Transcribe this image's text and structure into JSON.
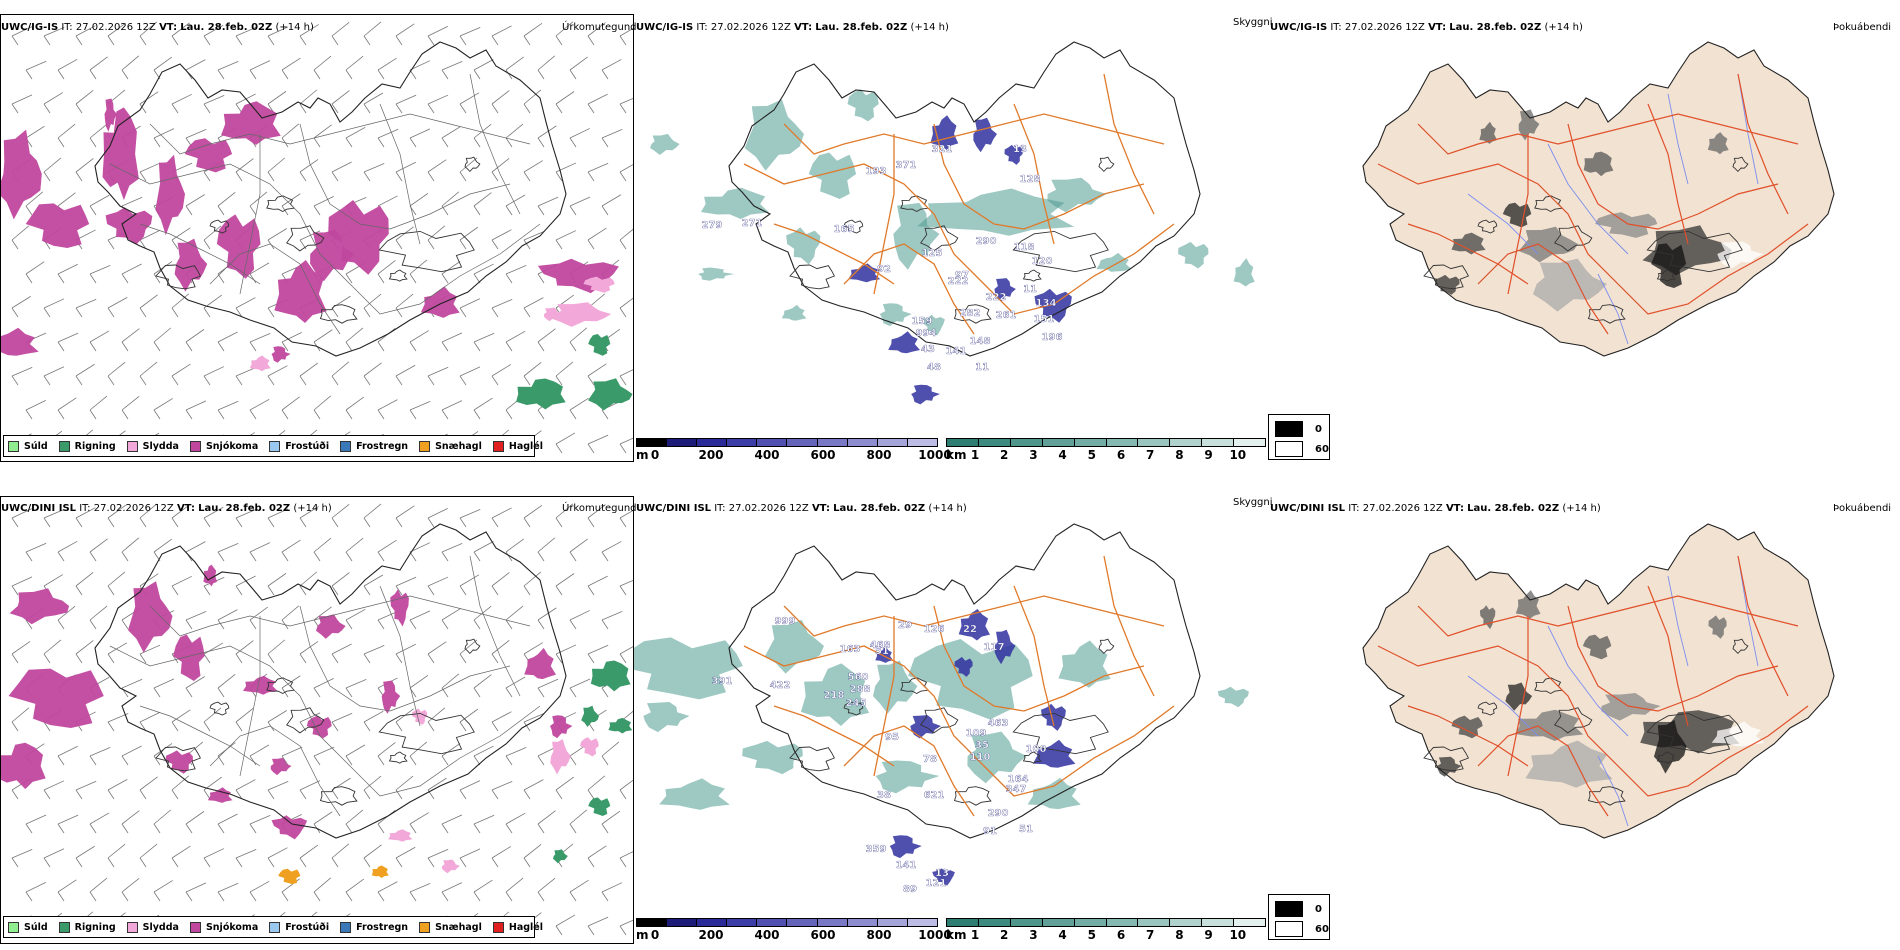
{
  "rows": [
    {
      "model": "UWC/IG-IS",
      "it_label": "IT:",
      "it_value": "27.02.2026 12Z",
      "vt_label": "VT:",
      "vt_value": "Lau. 28.feb. 02Z",
      "lead": "(+14 h)",
      "panel_titles": [
        "Úrkomutegund",
        "Skyggni",
        "Þokuábendi"
      ],
      "cloud_labels": [
        "321",
        "13",
        "279",
        "371",
        "193",
        "128",
        "271",
        "165",
        "290",
        "118",
        "125",
        "120",
        "92",
        "97",
        "222",
        "11",
        "222",
        "134",
        "282",
        "261",
        "159",
        "151",
        "994",
        "148",
        "196",
        "43",
        "141",
        "48",
        "11"
      ]
    },
    {
      "model": "UWC/DINI ISL",
      "it_label": "IT:",
      "it_value": "27.02.2026 12Z",
      "vt_label": "VT:",
      "vt_value": "Lau. 28.feb. 02Z",
      "lead": "(+14 h)",
      "panel_titles": [
        "Úrkomutegund",
        "Skyggni",
        "Þokuábendi"
      ],
      "cloud_labels": [
        "999",
        "29",
        "126",
        "22",
        "468",
        "163",
        "51",
        "117",
        "560",
        "391",
        "422",
        "288",
        "218",
        "245",
        "463",
        "109",
        "95",
        "35",
        "100",
        "110",
        "78",
        "164",
        "347",
        "38",
        "621",
        "290",
        "91",
        "51",
        "359",
        "141",
        "13",
        "89",
        "121"
      ]
    }
  ],
  "precip_legend": [
    {
      "label": "Súld",
      "color": "#90ee90"
    },
    {
      "label": "Rigning",
      "color": "#3a9a6a"
    },
    {
      "label": "Slydda",
      "color": "#f2a8d8"
    },
    {
      "label": "Snjókoma",
      "color": "#c0479e"
    },
    {
      "label": "Frostúði",
      "color": "#9ac8ee"
    },
    {
      "label": "Frostregn",
      "color": "#3a78b8"
    },
    {
      "label": "Snæhagl",
      "color": "#f0a020"
    },
    {
      "label": "Haglél",
      "color": "#e02020"
    }
  ],
  "cloudbase_bar": {
    "unit": "m",
    "ticks": [
      "0",
      "200",
      "400",
      "600",
      "800",
      "1000"
    ],
    "colors": [
      "#000000",
      "#1c1c78",
      "#2a2a98",
      "#3d3da8",
      "#5050b0",
      "#6464b8",
      "#7878c4",
      "#8c8cce",
      "#a4a4d8",
      "#bcbce4"
    ]
  },
  "visibility_bar": {
    "unit": "km",
    "ticks": [
      "1",
      "2",
      "3",
      "4",
      "5",
      "6",
      "7",
      "8",
      "9",
      "10"
    ],
    "colors": [
      "#2e7d72",
      "#3d8a80",
      "#4e958c",
      "#60a098",
      "#72aca4",
      "#86b8b2",
      "#9ac4be",
      "#b0d2cc",
      "#c8e0dc",
      "#e4f0ee"
    ]
  },
  "fog_legend": [
    {
      "label": "0",
      "color": "#000000"
    },
    {
      "label": "60",
      "color": "#ffffff"
    }
  ],
  "colors": {
    "snow": "#c0479e",
    "sleet": "#f2a8d8",
    "rain": "#3a9a6a",
    "vis": "#4e9a90",
    "cloudbase": "#3030a0",
    "roads": "#e07a2a",
    "land_fog": "#f2e2d2",
    "fog_roads": "#e0502a",
    "rivers": "#7c8ef0"
  }
}
